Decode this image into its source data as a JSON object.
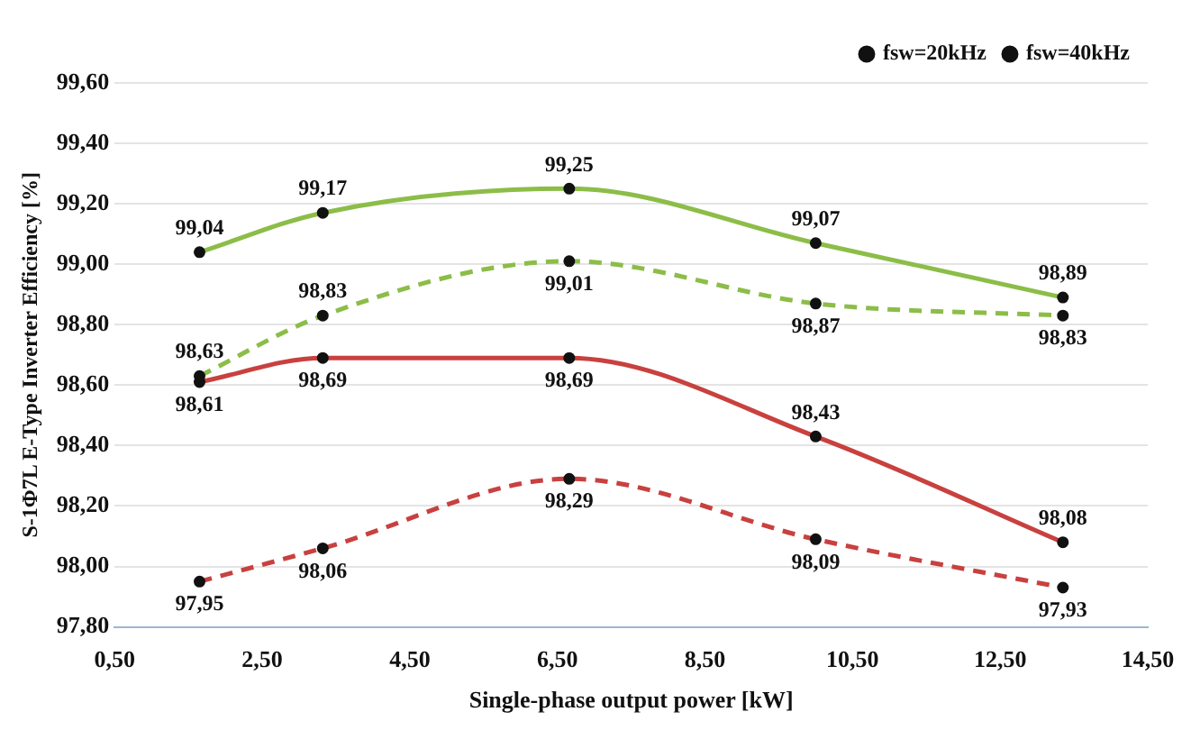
{
  "chart_data": {
    "type": "line",
    "xlabel": "Single-phase output power [kW]",
    "ylabel": "S-1Φ7L E-Type Inverter Efficiency [%]",
    "xlim": [
      0.5,
      14.5
    ],
    "xticks": [
      {
        "value": 0.5,
        "label": "0,50"
      },
      {
        "value": 2.5,
        "label": "2,50"
      },
      {
        "value": 4.5,
        "label": "4,50"
      },
      {
        "value": 6.5,
        "label": "6,50"
      },
      {
        "value": 8.5,
        "label": "8,50"
      },
      {
        "value": 10.5,
        "label": "10,50"
      },
      {
        "value": 12.5,
        "label": "12,50"
      },
      {
        "value": 14.5,
        "label": "14,50"
      }
    ],
    "ylim": [
      97.8,
      99.6
    ],
    "yticks": [
      {
        "value": 97.8,
        "label": "97,80"
      },
      {
        "value": 98,
        "label": "98,00"
      },
      {
        "value": 98.2,
        "label": "98,20"
      },
      {
        "value": 98.4,
        "label": "98,40"
      },
      {
        "value": 98.6,
        "label": "98,60"
      },
      {
        "value": 98.8,
        "label": "98,80"
      },
      {
        "value": 99,
        "label": "99,00"
      },
      {
        "value": 99.2,
        "label": "99,20"
      },
      {
        "value": 99.4,
        "label": "99,40"
      },
      {
        "value": 99.6,
        "label": "99,60"
      }
    ],
    "x": [
      1.65,
      3.32,
      6.66,
      10.0,
      13.35
    ],
    "series": [
      {
        "name": "fsw=20kHz",
        "color": "#8cbd48",
        "line_style": "solid",
        "values": [
          99.04,
          99.17,
          99.25,
          99.07,
          98.89
        ],
        "value_labels": [
          "99,04",
          "99,17",
          "99,25",
          "99,07",
          "98,89"
        ]
      },
      {
        "color": "#8cbd48",
        "line_style": "dashed",
        "values": [
          98.63,
          98.83,
          99.01,
          98.87,
          98.83
        ],
        "value_labels": [
          "98,63",
          "98,83",
          "99,01",
          "98,87",
          "98,83"
        ]
      },
      {
        "name": "fsw=40kHz",
        "color": "#c8413f",
        "line_style": "solid",
        "values": [
          98.61,
          98.69,
          98.69,
          98.43,
          98.08
        ],
        "value_labels": [
          "98,61",
          "98,69",
          "98,69",
          "98,43",
          "98,08"
        ]
      },
      {
        "color": "#c8413f",
        "line_style": "dashed",
        "values": [
          97.95,
          98.06,
          98.29,
          98.09,
          97.93
        ],
        "value_labels": [
          "97,95",
          "98,06",
          "98,29",
          "98,09",
          "97,93"
        ]
      }
    ],
    "grid": "y",
    "legend": "top right",
    "marker": "circle"
  }
}
